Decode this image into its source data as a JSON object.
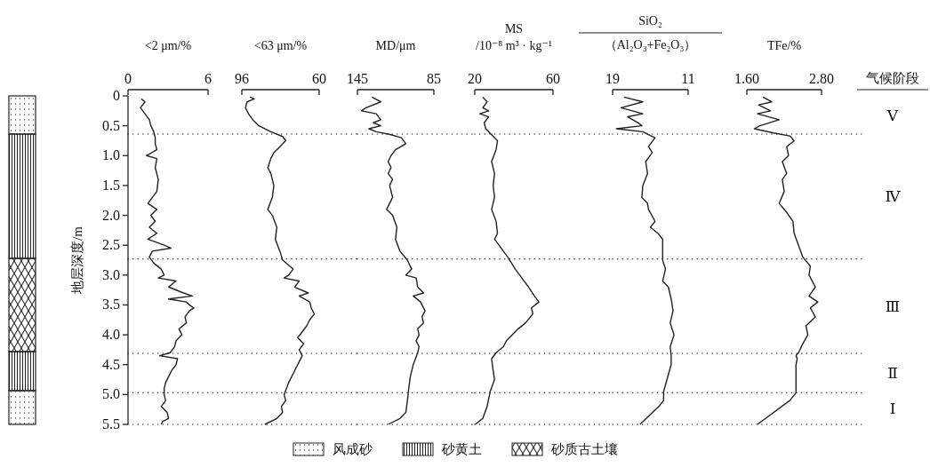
{
  "chart_data": [
    {
      "type": "line",
      "title": "<2 μm/%",
      "ylabel": "地层深度/m",
      "xlim": [
        0,
        6
      ],
      "xticks": [
        0,
        6
      ],
      "ylim": [
        5.5,
        0
      ],
      "annotations": [
        "风成砂",
        "砂黄土",
        "砂质古土壤"
      ],
      "yticks": [
        0,
        {
          "value": 0.5,
          "label": "0.5"
        },
        {
          "value": 1,
          "label": "1.0"
        },
        {
          "value": 1.5,
          "label": "1.5"
        },
        {
          "value": 2,
          "label": "2.0"
        },
        {
          "value": 2.5,
          "label": "2.5"
        },
        {
          "value": 3,
          "label": "3.0"
        },
        {
          "value": 3.5,
          "label": "3.5"
        },
        {
          "value": 4,
          "label": "4.0"
        },
        {
          "value": 4.5,
          "label": "4.5"
        },
        {
          "value": 5,
          "label": "5.0"
        },
        {
          "value": 5.5,
          "label": "5.5"
        }
      ],
      "ref_lines": [
        {
          "axis": "y",
          "value": 0.64,
          "line_style": "dotted",
          "color": "#555555"
        },
        {
          "axis": "y",
          "value": 2.73,
          "line_style": "dotted",
          "color": "#555555"
        },
        {
          "axis": "y",
          "value": 4.31,
          "line_style": "dotted",
          "color": "#555555"
        },
        {
          "axis": "y",
          "value": 4.97,
          "line_style": "dotted",
          "color": "#555555"
        },
        {
          "axis": "y",
          "value": 5.5,
          "line_style": "dotted",
          "color": "#555555"
        }
      ],
      "series": [
        {
          "color": "#222222",
          "x": [
            1.0,
            1.27,
            0.93,
            1.27,
            1.6,
            1.71,
            1.93,
            2.04,
            2.04,
            2.16,
            1.38,
            2.16,
            2.04,
            2.27,
            2.16,
            1.49,
            2.16,
            1.71,
            2.04,
            1.6,
            2.16,
            1.49,
            2.71,
            3.22,
            1.82,
            1.6,
            1.93,
            2.49,
            2.71,
            2.27,
            3.6,
            3.04,
            4.16,
            4.82,
            3.04,
            4.38,
            4.6,
            4.93,
            4.6,
            4.27,
            4.38,
            3.82,
            4.04,
            3.6,
            3.49,
            3.16,
            2.38,
            3.71,
            3.6,
            3.27,
            3.04,
            2.82,
            2.71,
            2.71,
            2.82,
            2.49,
            2.93,
            3.04,
            2.6,
            2.49
          ],
          "values": [
            0.05,
            0.1,
            0.2,
            0.3,
            0.4,
            0.5,
            0.6,
            0.7,
            0.8,
            0.9,
            1.0,
            1.05,
            1.2,
            1.4,
            1.6,
            1.8,
            1.9,
            2.0,
            2.1,
            2.2,
            2.3,
            2.4,
            2.5,
            2.55,
            2.6,
            2.7,
            2.8,
            2.9,
            3.0,
            3.05,
            3.1,
            3.2,
            3.3,
            3.35,
            3.4,
            3.45,
            3.5,
            3.55,
            3.6,
            3.7,
            3.8,
            3.9,
            4.0,
            4.1,
            4.2,
            4.3,
            4.35,
            4.4,
            4.5,
            4.6,
            4.7,
            4.8,
            4.9,
            5.0,
            5.1,
            5.2,
            5.3,
            5.4,
            5.45,
            5.5
          ]
        }
      ]
    },
    {
      "type": "line",
      "title": "<63 μm/%",
      "xlim": [
        96,
        60
      ],
      "xticks": [
        96,
        60
      ],
      "ylim": [
        5.5,
        0
      ],
      "tick_labels": "x",
      "ref_lines": [
        {
          "axis": "y",
          "value": 0.64,
          "line_style": "dotted",
          "color": "#555555"
        },
        {
          "axis": "y",
          "value": 2.73,
          "line_style": "dotted",
          "color": "#555555"
        },
        {
          "axis": "y",
          "value": 4.31,
          "line_style": "dotted",
          "color": "#555555"
        },
        {
          "axis": "y",
          "value": 4.97,
          "line_style": "dotted",
          "color": "#555555"
        },
        {
          "axis": "y",
          "value": 5.5,
          "line_style": "dotted",
          "color": "#555555"
        }
      ],
      "series": [
        {
          "color": "#222222",
          "x": [
            92.2,
            90.2,
            93.6,
            94.3,
            92.9,
            90.9,
            88.1,
            82.5,
            77.0,
            75.6,
            78.3,
            81.1,
            82.5,
            83.9,
            82.5,
            81.1,
            81.8,
            83.9,
            81.8,
            79.7,
            80.4,
            78.3,
            77.0,
            72.1,
            74.2,
            76.3,
            69.3,
            71.4,
            65.1,
            69.3,
            64.4,
            63.7,
            62.3,
            64.4,
            65.8,
            67.9,
            70.0,
            67.2,
            69.3,
            67.9,
            69.3,
            71.4,
            74.2,
            76.3,
            75.6,
            77.6,
            77.0,
            79.7,
            85.3
          ],
          "values": [
            0.02,
            0.05,
            0.1,
            0.2,
            0.3,
            0.4,
            0.5,
            0.6,
            0.68,
            0.75,
            0.85,
            0.95,
            1.05,
            1.2,
            1.3,
            1.5,
            1.7,
            1.9,
            2.0,
            2.2,
            2.4,
            2.6,
            2.75,
            2.9,
            3.0,
            3.05,
            3.1,
            3.2,
            3.3,
            3.35,
            3.45,
            3.55,
            3.65,
            3.75,
            3.85,
            3.95,
            4.05,
            4.15,
            4.25,
            4.35,
            4.45,
            4.6,
            4.8,
            5.0,
            5.1,
            5.2,
            5.3,
            5.4,
            5.5
          ]
        }
      ]
    },
    {
      "type": "line",
      "title": "MD/μm",
      "xlim": [
        145,
        85
      ],
      "xticks": [
        145,
        85
      ],
      "ylim": [
        5.5,
        0
      ],
      "tick_labels": "x",
      "ref_lines": [
        {
          "axis": "y",
          "value": 0.64,
          "line_style": "dotted",
          "color": "#555555"
        },
        {
          "axis": "y",
          "value": 2.73,
          "line_style": "dotted",
          "color": "#555555"
        },
        {
          "axis": "y",
          "value": 4.31,
          "line_style": "dotted",
          "color": "#555555"
        },
        {
          "axis": "y",
          "value": 4.97,
          "line_style": "dotted",
          "color": "#555555"
        },
        {
          "axis": "y",
          "value": 5.5,
          "line_style": "dotted",
          "color": "#555555"
        }
      ],
      "series": [
        {
          "color": "#222222",
          "x": [
            133.6,
            126.7,
            138.3,
            141.8,
            130.2,
            126.7,
            132.5,
            126.7,
            136.0,
            130.2,
            118.6,
            110.5,
            107.0,
            115.1,
            118.6,
            120.9,
            118.6,
            120.9,
            117.4,
            119.7,
            117.4,
            122.1,
            117.4,
            114.0,
            115.1,
            111.6,
            105.8,
            102.4,
            107.0,
            98.9,
            97.7,
            93.1,
            101.2,
            95.4,
            91.9,
            94.3,
            93.1,
            97.7,
            96.6,
            98.9,
            96.6,
            97.7,
            101.2,
            103.5,
            104.7,
            105.8,
            107.0,
            111.6,
            120.9
          ],
          "values": [
            0.02,
            0.1,
            0.2,
            0.25,
            0.3,
            0.4,
            0.45,
            0.5,
            0.55,
            0.6,
            0.65,
            0.7,
            0.8,
            0.9,
            1.0,
            1.1,
            1.2,
            1.3,
            1.4,
            1.5,
            1.7,
            1.9,
            2.0,
            2.2,
            2.4,
            2.6,
            2.75,
            2.9,
            3.0,
            3.05,
            3.2,
            3.3,
            3.35,
            3.45,
            3.6,
            3.7,
            3.8,
            3.9,
            4.0,
            4.1,
            4.2,
            4.3,
            4.5,
            4.7,
            4.9,
            5.1,
            5.3,
            5.4,
            5.5
          ]
        }
      ]
    },
    {
      "type": "line",
      "title": "MS\n/10⁻⁸ m³ · kg⁻¹",
      "xlim": [
        20,
        60
      ],
      "xticks": [
        20,
        60
      ],
      "ylim": [
        5.5,
        0
      ],
      "tick_labels": "x",
      "ref_lines": [
        {
          "axis": "y",
          "value": 0.64,
          "line_style": "dotted",
          "color": "#555555"
        },
        {
          "axis": "y",
          "value": 2.73,
          "line_style": "dotted",
          "color": "#555555"
        },
        {
          "axis": "y",
          "value": 4.31,
          "line_style": "dotted",
          "color": "#555555"
        },
        {
          "axis": "y",
          "value": 4.97,
          "line_style": "dotted",
          "color": "#555555"
        },
        {
          "axis": "y",
          "value": 5.5,
          "line_style": "dotted",
          "color": "#555555"
        }
      ],
      "series": [
        {
          "color": "#222222",
          "x": [
            24.1,
            26.3,
            24.1,
            27.1,
            22.6,
            27.1,
            24.8,
            25.6,
            28.6,
            31.6,
            30.9,
            28.6,
            30.1,
            29.4,
            30.1,
            28.6,
            30.9,
            31.6,
            30.1,
            32.4,
            34.6,
            36.9,
            40.7,
            43.0,
            45.2,
            47.5,
            50.5,
            52.8,
            49.0,
            49.7,
            46.0,
            42.2,
            39.2,
            36.2,
            34.6,
            30.9,
            28.6,
            29.4,
            30.1,
            27.9,
            26.3,
            24.1,
            20.3
          ],
          "values": [
            0.02,
            0.1,
            0.2,
            0.25,
            0.3,
            0.35,
            0.45,
            0.55,
            0.65,
            0.75,
            0.9,
            1.1,
            1.3,
            1.5,
            1.7,
            1.9,
            2.1,
            2.3,
            2.4,
            2.5,
            2.6,
            2.7,
            2.9,
            3.0,
            3.1,
            3.2,
            3.35,
            3.45,
            3.55,
            3.65,
            3.8,
            3.9,
            4.0,
            4.1,
            4.2,
            4.3,
            4.4,
            4.6,
            4.75,
            4.95,
            5.2,
            5.4,
            5.5
          ]
        }
      ]
    },
    {
      "type": "line",
      "title": "SiO₂",
      "subtitle": "（Al₂O₃+Fe₂O₃）",
      "xlim": [
        19,
        11
      ],
      "xticks": [
        19,
        11
      ],
      "ylim": [
        5.5,
        0
      ],
      "tick_labels": "x",
      "ref_lines": [
        {
          "axis": "y",
          "value": 0.64,
          "line_style": "dotted",
          "color": "#555555"
        },
        {
          "axis": "y",
          "value": 2.73,
          "line_style": "dotted",
          "color": "#555555"
        },
        {
          "axis": "y",
          "value": 4.31,
          "line_style": "dotted",
          "color": "#555555"
        },
        {
          "axis": "y",
          "value": 4.97,
          "line_style": "dotted",
          "color": "#555555"
        },
        {
          "axis": "y",
          "value": 5.5,
          "line_style": "dotted",
          "color": "#555555"
        }
      ],
      "series": [
        {
          "color": "#222222",
          "x": [
            17.8,
            15.8,
            18.1,
            15.8,
            17.4,
            16.3,
            15.9,
            18.6,
            15.8,
            15.2,
            14.5,
            15.2,
            14.8,
            15.5,
            15.3,
            15.8,
            15.9,
            15.3,
            15.2,
            14.5,
            15.0,
            14.2,
            13.7,
            13.7,
            13.7,
            13.4,
            13.7,
            13.1,
            12.8,
            12.6,
            12.9,
            12.5,
            12.9,
            12.8,
            12.8,
            13.6,
            13.6,
            14.1,
            16.1
          ],
          "values": [
            0.02,
            0.1,
            0.2,
            0.3,
            0.35,
            0.45,
            0.5,
            0.55,
            0.6,
            0.65,
            0.7,
            0.85,
            0.95,
            1.1,
            1.3,
            1.5,
            1.7,
            1.8,
            1.9,
            2.1,
            2.2,
            2.3,
            2.4,
            2.55,
            2.75,
            2.9,
            3.1,
            3.2,
            3.4,
            3.6,
            3.8,
            4.0,
            4.2,
            4.35,
            4.5,
            4.95,
            5.1,
            5.2,
            5.5
          ]
        }
      ]
    },
    {
      "type": "line",
      "title": "TFe/%",
      "xlim": [
        1.6,
        2.8
      ],
      "xticks": [
        {
          "value": 1.6,
          "label": "1.60"
        },
        {
          "value": 2.8,
          "label": "2.80"
        }
      ],
      "ylim": [
        5.5,
        0
      ],
      "tick_labels": "x",
      "ref_lines": [
        {
          "axis": "y",
          "value": 0.64,
          "line_style": "dotted",
          "color": "#555555"
        },
        {
          "axis": "y",
          "value": 2.73,
          "line_style": "dotted",
          "color": "#555555"
        },
        {
          "axis": "y",
          "value": 4.31,
          "line_style": "dotted",
          "color": "#555555"
        },
        {
          "axis": "y",
          "value": 4.97,
          "line_style": "dotted",
          "color": "#555555"
        },
        {
          "axis": "y",
          "value": 5.5,
          "line_style": "dotted",
          "color": "#555555"
        }
      ],
      "annotations": [
        "气候阶段",
        "Ⅴ",
        "Ⅳ",
        "Ⅲ",
        "Ⅱ",
        "Ⅰ"
      ],
      "series": [
        {
          "color": "#222222",
          "x": [
            1.86,
            2.0,
            1.79,
            1.98,
            1.77,
            2.12,
            1.81,
            1.72,
            2.03,
            2.29,
            2.36,
            2.24,
            2.27,
            2.17,
            2.24,
            2.17,
            2.2,
            2.12,
            2.24,
            2.34,
            2.36,
            2.43,
            2.5,
            2.62,
            2.6,
            2.7,
            2.6,
            2.74,
            2.62,
            2.7,
            2.55,
            2.58,
            2.5,
            2.43,
            2.39,
            2.41,
            2.39,
            2.39,
            2.29,
            1.77
          ],
          "values": [
            0.02,
            0.1,
            0.15,
            0.25,
            0.3,
            0.4,
            0.5,
            0.55,
            0.62,
            0.67,
            0.75,
            0.85,
            1.0,
            1.1,
            1.3,
            1.4,
            1.6,
            1.8,
            1.95,
            2.1,
            2.3,
            2.5,
            2.7,
            2.85,
            3.0,
            3.2,
            3.35,
            3.45,
            3.55,
            3.7,
            3.85,
            4.0,
            4.15,
            4.3,
            4.35,
            4.4,
            4.5,
            4.97,
            5.1,
            5.5
          ]
        }
      ]
    }
  ]
}
